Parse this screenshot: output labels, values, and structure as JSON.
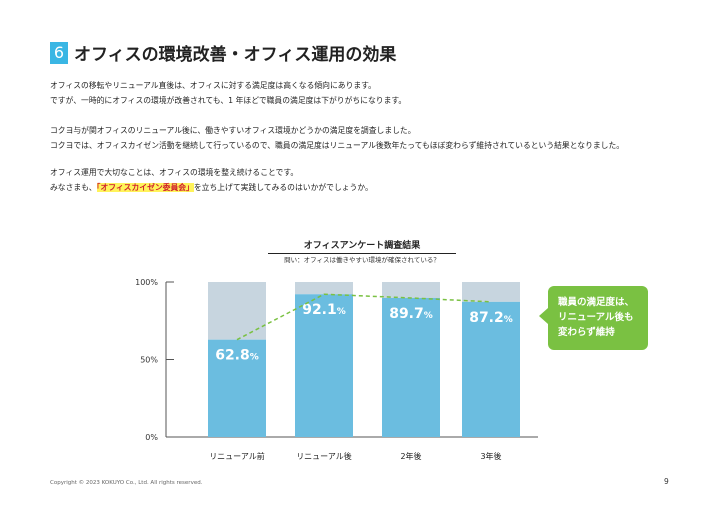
{
  "header": {
    "number": "6",
    "title": "オフィスの環境改善・オフィス運用の効果"
  },
  "body": {
    "p1_line1": "オフィスの移転やリニューアル直後は、オフィスに対する満足度は高くなる傾向にあります。",
    "p1_line2": "ですが、一時的にオフィスの環境が改善されても、1 年ほどで職員の満足度は下がりがちになります。",
    "p2_line1": "コクヨ与が関オフィスのリニューアル後に、働きやすいオフィス環境かどうかの満足度を調査しました。",
    "p2_line2": "コクヨでは、オフィスカイゼン活動を継続して行っているので、職員の満足度はリニューアル後数年たってもほぼ変わらず維持されているという結果となりました。",
    "p3_line1": "オフィス運用で大切なことは、オフィスの環境を整え続けることです。",
    "p3_line2_pre": "みなさまも、",
    "p3_line2_highlight": "「オフィスカイゼン委員会」",
    "p3_line2_post": "を立ち上げて実践してみるのはいかがでしょうか。"
  },
  "chart_data": {
    "type": "bar",
    "title": "オフィスアンケート調査結果",
    "subtitle": "問い：オフィスは働きやすい環境が確保されている？",
    "categories": [
      "リニューアル前",
      "リニューアル後",
      "2年後",
      "3年後"
    ],
    "series": [
      {
        "values": [
          62.8,
          92.1,
          89.7,
          87.2
        ]
      }
    ],
    "value_labels": [
      "62.8",
      "92.1",
      "89.7",
      "87.2"
    ],
    "value_unit": "%",
    "ylim": [
      0,
      100
    ],
    "yticks": [
      "0%",
      "50%",
      "100%"
    ],
    "stacked_remainder_to": 100,
    "trend_line": "dashed",
    "annotation": {
      "lines": [
        "職員の満足度は、",
        "リニューアル後も",
        "変わらず維持"
      ]
    },
    "colors": {
      "bar": "#6bbde0",
      "remainder": "#c7d5df",
      "trend": "#7ac142",
      "callout": "#7ac142",
      "value_text": "#ffffff"
    }
  },
  "footer": {
    "copyright": "Copyright © 2023 KOKUYO Co., Ltd. All rights reserved.",
    "page": "9"
  }
}
